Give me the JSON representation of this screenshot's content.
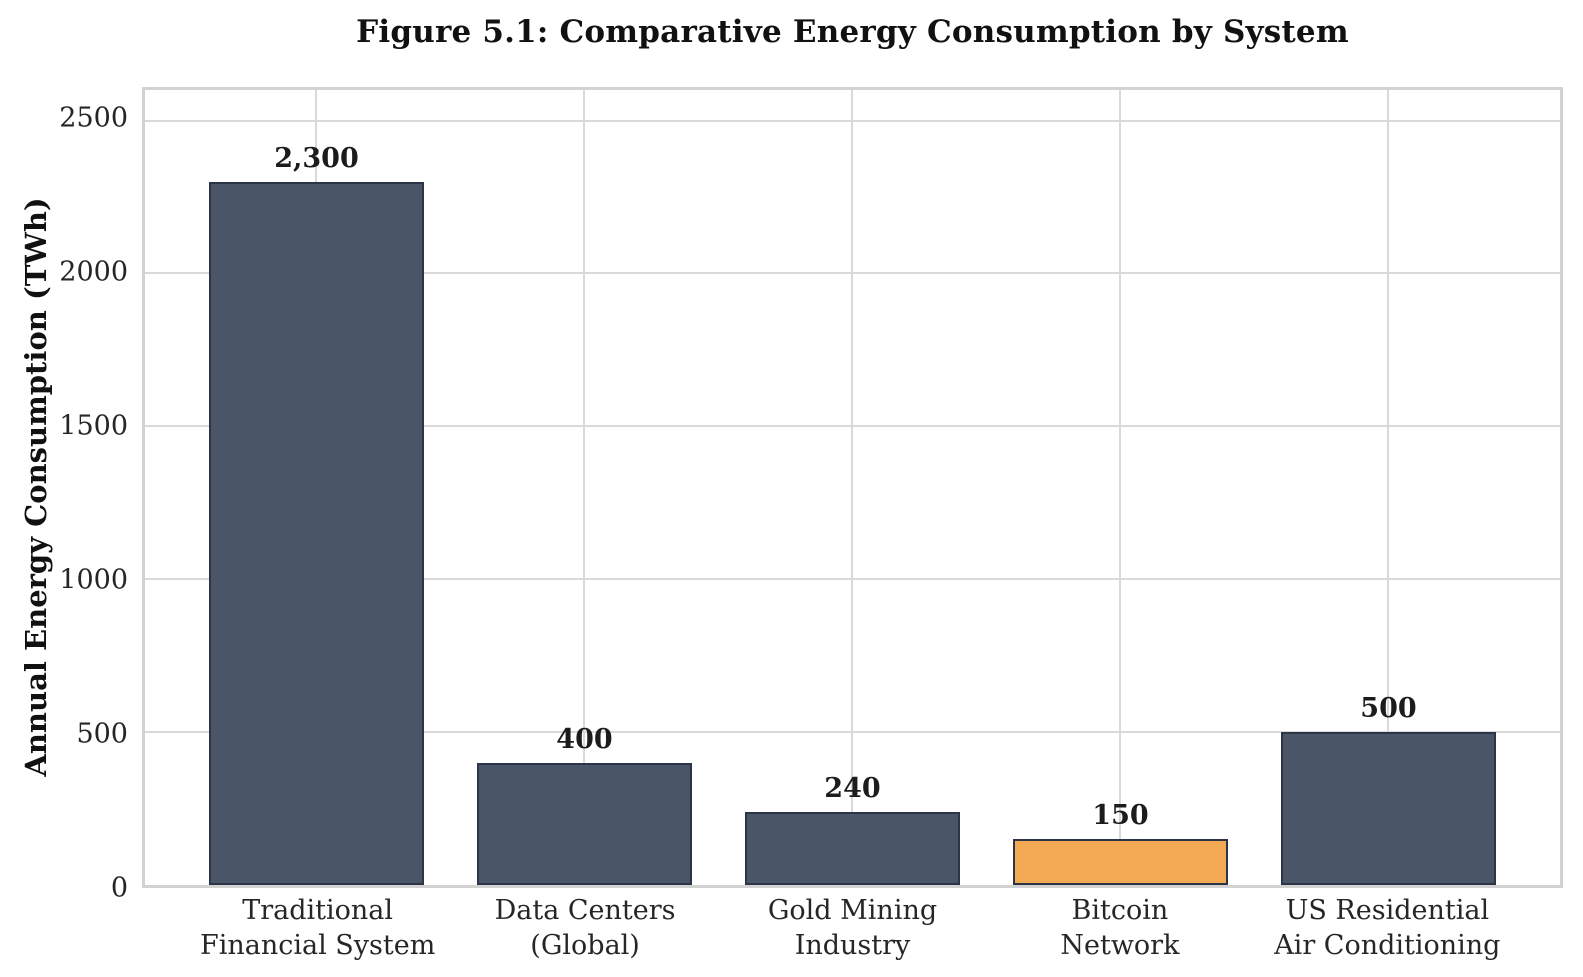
{
  "chart_data": {
    "type": "bar",
    "title": "Figure 5.1: Comparative Energy Consumption by System",
    "xlabel": "",
    "ylabel": "Annual Energy Consumption (TWh)",
    "categories": [
      "Traditional\nFinancial System",
      "Data Centers\n(Global)",
      "Gold Mining\nIndustry",
      "Bitcoin\nNetwork",
      "US Residential\nAir Conditioning"
    ],
    "values": [
      2300,
      400,
      240,
      150,
      500
    ],
    "value_labels": [
      "2,300",
      "400",
      "240",
      "150",
      "500"
    ],
    "yticks": [
      0,
      500,
      1000,
      1500,
      2000,
      2500
    ],
    "ylim": [
      0,
      2600
    ],
    "grid": true,
    "legend": "none",
    "colors": {
      "bar_default": "#4a5568",
      "bar_highlight": "#f4aa54",
      "bar_edge": "#2c3547",
      "gridline": "#d9d9d9",
      "text": "#1a1a1a"
    },
    "highlight_index": 3
  }
}
